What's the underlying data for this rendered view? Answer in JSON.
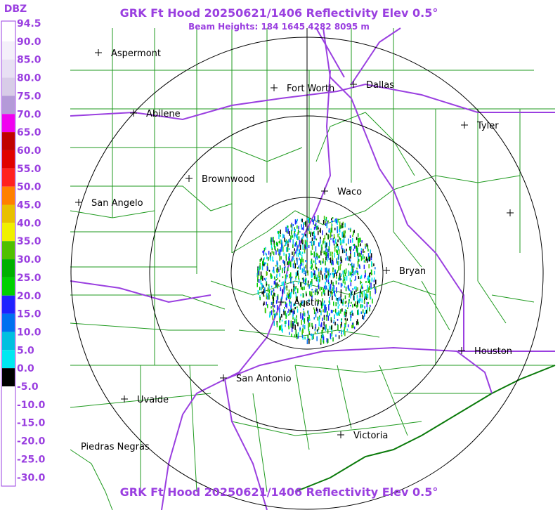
{
  "header": {
    "title": "GRK Ft Hood 20250621/1406 Reflectivity Elev 0.5°",
    "subtitle": "Beam Heights: 184 1645 4282 8095 m"
  },
  "footer": {
    "title": "GRK Ft Hood 20250621/1406 Reflectivity Elev 0.5°"
  },
  "scale": {
    "title": "DBZ",
    "labels": [
      "94.5",
      "90.0",
      "85.0",
      "80.0",
      "75.0",
      "70.0",
      "65.0",
      "60.0",
      "55.0",
      "50.0",
      "45.0",
      "40.0",
      "35.0",
      "30.0",
      "25.0",
      "20.0",
      "15.0",
      "10.0",
      "5.0",
      "0.0",
      "-5.0",
      "-10.0",
      "-15.0",
      "-20.0",
      "-25.0",
      "-30.0"
    ],
    "colors": [
      "#ffffff",
      "#f4f0fa",
      "#e8e0f4",
      "#d8cce8",
      "#b49ad8",
      "#f000f0",
      "#c00000",
      "#e00000",
      "#ff2020",
      "#ff8000",
      "#e8c000",
      "#f0f000",
      "#50c000",
      "#00b000",
      "#00d000",
      "#2020ff",
      "#0070f0",
      "#00c0e0",
      "#00e8f0",
      "#000000",
      "#ffffff",
      "#ffffff",
      "#ffffff",
      "#ffffff",
      "#ffffff"
    ]
  },
  "cities": [
    "Aspermont",
    "Abilene",
    "Fort Worth",
    "Dallas",
    "Tyler",
    "Brownwood",
    "Waco",
    "San Angelo",
    "Bryan",
    "Austin",
    "Houston",
    "San Antonio",
    "Uvalde",
    "Victoria",
    "Piedras Negras"
  ]
}
